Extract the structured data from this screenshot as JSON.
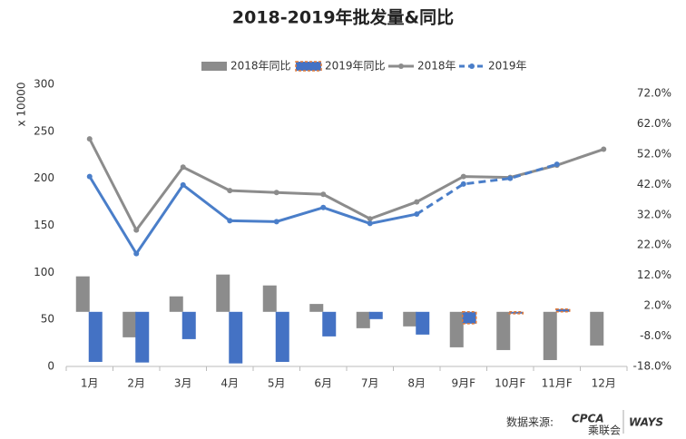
{
  "chart_data": {
    "type": "bar-line",
    "title": "2018-2019年批发量&同比",
    "y_label": "x 10000",
    "source": "数据来源:",
    "logos": [
      "CPCA",
      "乘联会",
      "WAYS"
    ],
    "categories": [
      "1月",
      "2月",
      "3月",
      "4月",
      "5月",
      "6月",
      "7月",
      "8月",
      "9月F",
      "10月F",
      "11月F",
      "12月"
    ],
    "ylim": [
      0,
      300
    ],
    "yticks": [
      0,
      50,
      100,
      150,
      200,
      250,
      300
    ],
    "y2lim": [
      -18,
      75
    ],
    "y2ticks": [
      {
        "value": -18,
        "label": "-18.0%"
      },
      {
        "value": -8,
        "label": "-8.0%"
      },
      {
        "value": 2,
        "label": "2.0%"
      },
      {
        "value": 12,
        "label": "12.0%"
      },
      {
        "value": 22,
        "label": "22.0%"
      },
      {
        "value": 32,
        "label": "32.0%"
      },
      {
        "value": 42,
        "label": "42.0%"
      },
      {
        "value": 52,
        "label": "52.0%"
      },
      {
        "value": 62,
        "label": "62.0%"
      },
      {
        "value": 72,
        "label": "72.0%"
      }
    ],
    "grid": false,
    "series": [
      {
        "name": "2018年同比",
        "type": "bar",
        "axis": "y2",
        "color": "#8c8c8c",
        "values": [
          11.7,
          -8.4,
          5.1,
          12.3,
          8.7,
          2.6,
          -5.4,
          -4.8,
          -11.7,
          -12.6,
          -15.9,
          -11.1
        ]
      },
      {
        "name": "2019年同比",
        "type": "bar",
        "axis": "y2",
        "color": "#4472c4",
        "border_color": "#e07b39",
        "dash_from": 8,
        "values": [
          -16.5,
          -16.7,
          -9.0,
          -17.0,
          -16.5,
          -8.1,
          -2.4,
          -7.5,
          -3.9,
          -0.6,
          0.9,
          null
        ]
      },
      {
        "name": "2018年",
        "type": "line",
        "color": "#8c8c8c",
        "values": [
          242,
          145,
          212,
          187,
          185,
          183,
          157,
          175,
          202,
          201,
          214,
          231
        ]
      },
      {
        "name": "2019年",
        "type": "line",
        "color": "#4a7ec9",
        "dash_from": 7,
        "values": [
          202,
          120,
          193,
          155,
          154,
          169,
          152,
          162,
          194,
          200,
          215,
          null
        ]
      }
    ]
  }
}
